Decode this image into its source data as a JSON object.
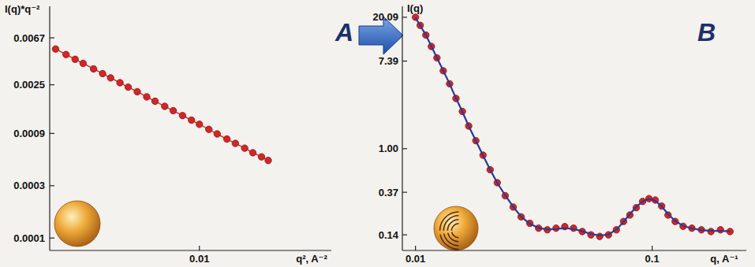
{
  "chart_data": [
    {
      "type": "line",
      "title": "A",
      "ylabel": "I(q)*q⁻²",
      "xlabel": "q², A⁻²",
      "log": true,
      "x": [
        0.0012,
        0.0014,
        0.0016,
        0.0018,
        0.0021,
        0.0024,
        0.0027,
        0.0031,
        0.0035,
        0.004,
        0.0046,
        0.0052,
        0.006,
        0.0068,
        0.0078,
        0.0089,
        0.01,
        0.0115,
        0.013,
        0.015,
        0.017,
        0.0195,
        0.022,
        0.025,
        0.0276
      ],
      "series": [
        {
          "color": "#d42626",
          "marker": "circle",
          "values": [
            0.0053,
            0.00472,
            0.00427,
            0.00392,
            0.00349,
            0.00316,
            0.00289,
            0.00261,
            0.00238,
            0.00216,
            0.00194,
            0.00177,
            0.00159,
            0.00145,
            0.00131,
            0.00119,
            0.00109,
            0.00098,
            0.00089,
            0.0008,
            0.00073,
            0.00066,
            0.0006,
            0.00055,
            0.00051
          ]
        }
      ],
      "xlim": [
        0.0011,
        0.07
      ],
      "xticks": [
        0.01
      ],
      "ylim": [
        7.7e-05,
        0.013
      ],
      "yticks": [
        0.0067,
        0.0025,
        0.0009,
        0.0003,
        0.0001
      ]
    },
    {
      "type": "scatter",
      "title": "B",
      "ylabel": "I(q)",
      "xlabel": "q, A⁻¹",
      "log": true,
      "x": [
        0.01,
        0.01047,
        0.01106,
        0.01167,
        0.01232,
        0.0131,
        0.01394,
        0.01483,
        0.01578,
        0.01678,
        0.01799,
        0.01929,
        0.02068,
        0.02216,
        0.02394,
        0.02587,
        0.02795,
        0.03043,
        0.03313,
        0.03606,
        0.03926,
        0.04275,
        0.04654,
        0.05066,
        0.05515,
        0.06004,
        0.06537,
        0.07063,
        0.07571,
        0.08054,
        0.08568,
        0.09114,
        0.09696,
        0.1031,
        0.1097,
        0.1167,
        0.1251,
        0.1352,
        0.1472,
        0.1615,
        0.1772,
        0.1944,
        0.2133
      ],
      "series": [
        {
          "type": "scatter",
          "color": "#d42626",
          "marker": "circle",
          "values": [
            20.09,
            16.7,
            13.37,
            10.31,
            7.96,
            5.92,
            4.4,
            3.15,
            2.34,
            1.68,
            1.2,
            0.862,
            0.618,
            0.46,
            0.342,
            0.264,
            0.211,
            0.182,
            0.163,
            0.157,
            0.163,
            0.169,
            0.163,
            0.151,
            0.14,
            0.135,
            0.14,
            0.157,
            0.19,
            0.22,
            0.26,
            0.3,
            0.32,
            0.31,
            0.27,
            0.22,
            0.19,
            0.17,
            0.163,
            0.157,
            0.151,
            0.157,
            0.151
          ]
        },
        {
          "type": "line",
          "color": "#2b3a92",
          "values": [
            19.9,
            16.6,
            13.4,
            10.4,
            7.95,
            5.95,
            4.38,
            3.16,
            2.33,
            1.68,
            1.2,
            0.86,
            0.62,
            0.458,
            0.345,
            0.266,
            0.212,
            0.18,
            0.164,
            0.158,
            0.16,
            0.163,
            0.16,
            0.152,
            0.143,
            0.138,
            0.141,
            0.158,
            0.188,
            0.225,
            0.265,
            0.3,
            0.318,
            0.305,
            0.268,
            0.225,
            0.192,
            0.172,
            0.162,
            0.156,
            0.153,
            0.153,
            0.152
          ]
        }
      ],
      "xlim": [
        0.0088,
        0.25
      ],
      "xticks": [
        0.01,
        0.1
      ],
      "ylim": [
        0.098,
        25.8
      ],
      "yticks": [
        20.09,
        7.39,
        {
          "value": 1,
          "label": "1.00"
        },
        0.37,
        0.14
      ]
    }
  ]
}
